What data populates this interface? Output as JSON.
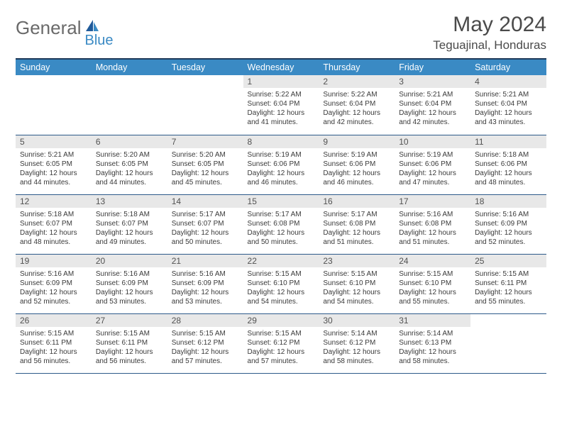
{
  "logo": {
    "general": "General",
    "blue": "Blue"
  },
  "title": "May 2024",
  "location": "Teguajinal, Honduras",
  "weekdays": [
    "Sunday",
    "Monday",
    "Tuesday",
    "Wednesday",
    "Thursday",
    "Friday",
    "Saturday"
  ],
  "colors": {
    "header_bg": "#3a8ac4",
    "header_text": "#ffffff",
    "border_top": "#1f3a5a",
    "row_border": "#2d5a8a",
    "daynum_bg": "#e8e8e8",
    "text": "#3a3a3a",
    "title_text": "#4a4a4a",
    "logo_general": "#6a6a6a",
    "logo_blue": "#3a8ac4"
  },
  "weeks": [
    [
      null,
      null,
      null,
      {
        "n": "1",
        "sr": "Sunrise: 5:22 AM",
        "ss": "Sunset: 6:04 PM",
        "d1": "Daylight: 12 hours",
        "d2": "and 41 minutes."
      },
      {
        "n": "2",
        "sr": "Sunrise: 5:22 AM",
        "ss": "Sunset: 6:04 PM",
        "d1": "Daylight: 12 hours",
        "d2": "and 42 minutes."
      },
      {
        "n": "3",
        "sr": "Sunrise: 5:21 AM",
        "ss": "Sunset: 6:04 PM",
        "d1": "Daylight: 12 hours",
        "d2": "and 42 minutes."
      },
      {
        "n": "4",
        "sr": "Sunrise: 5:21 AM",
        "ss": "Sunset: 6:04 PM",
        "d1": "Daylight: 12 hours",
        "d2": "and 43 minutes."
      }
    ],
    [
      {
        "n": "5",
        "sr": "Sunrise: 5:21 AM",
        "ss": "Sunset: 6:05 PM",
        "d1": "Daylight: 12 hours",
        "d2": "and 44 minutes."
      },
      {
        "n": "6",
        "sr": "Sunrise: 5:20 AM",
        "ss": "Sunset: 6:05 PM",
        "d1": "Daylight: 12 hours",
        "d2": "and 44 minutes."
      },
      {
        "n": "7",
        "sr": "Sunrise: 5:20 AM",
        "ss": "Sunset: 6:05 PM",
        "d1": "Daylight: 12 hours",
        "d2": "and 45 minutes."
      },
      {
        "n": "8",
        "sr": "Sunrise: 5:19 AM",
        "ss": "Sunset: 6:06 PM",
        "d1": "Daylight: 12 hours",
        "d2": "and 46 minutes."
      },
      {
        "n": "9",
        "sr": "Sunrise: 5:19 AM",
        "ss": "Sunset: 6:06 PM",
        "d1": "Daylight: 12 hours",
        "d2": "and 46 minutes."
      },
      {
        "n": "10",
        "sr": "Sunrise: 5:19 AM",
        "ss": "Sunset: 6:06 PM",
        "d1": "Daylight: 12 hours",
        "d2": "and 47 minutes."
      },
      {
        "n": "11",
        "sr": "Sunrise: 5:18 AM",
        "ss": "Sunset: 6:06 PM",
        "d1": "Daylight: 12 hours",
        "d2": "and 48 minutes."
      }
    ],
    [
      {
        "n": "12",
        "sr": "Sunrise: 5:18 AM",
        "ss": "Sunset: 6:07 PM",
        "d1": "Daylight: 12 hours",
        "d2": "and 48 minutes."
      },
      {
        "n": "13",
        "sr": "Sunrise: 5:18 AM",
        "ss": "Sunset: 6:07 PM",
        "d1": "Daylight: 12 hours",
        "d2": "and 49 minutes."
      },
      {
        "n": "14",
        "sr": "Sunrise: 5:17 AM",
        "ss": "Sunset: 6:07 PM",
        "d1": "Daylight: 12 hours",
        "d2": "and 50 minutes."
      },
      {
        "n": "15",
        "sr": "Sunrise: 5:17 AM",
        "ss": "Sunset: 6:08 PM",
        "d1": "Daylight: 12 hours",
        "d2": "and 50 minutes."
      },
      {
        "n": "16",
        "sr": "Sunrise: 5:17 AM",
        "ss": "Sunset: 6:08 PM",
        "d1": "Daylight: 12 hours",
        "d2": "and 51 minutes."
      },
      {
        "n": "17",
        "sr": "Sunrise: 5:16 AM",
        "ss": "Sunset: 6:08 PM",
        "d1": "Daylight: 12 hours",
        "d2": "and 51 minutes."
      },
      {
        "n": "18",
        "sr": "Sunrise: 5:16 AM",
        "ss": "Sunset: 6:09 PM",
        "d1": "Daylight: 12 hours",
        "d2": "and 52 minutes."
      }
    ],
    [
      {
        "n": "19",
        "sr": "Sunrise: 5:16 AM",
        "ss": "Sunset: 6:09 PM",
        "d1": "Daylight: 12 hours",
        "d2": "and 52 minutes."
      },
      {
        "n": "20",
        "sr": "Sunrise: 5:16 AM",
        "ss": "Sunset: 6:09 PM",
        "d1": "Daylight: 12 hours",
        "d2": "and 53 minutes."
      },
      {
        "n": "21",
        "sr": "Sunrise: 5:16 AM",
        "ss": "Sunset: 6:09 PM",
        "d1": "Daylight: 12 hours",
        "d2": "and 53 minutes."
      },
      {
        "n": "22",
        "sr": "Sunrise: 5:15 AM",
        "ss": "Sunset: 6:10 PM",
        "d1": "Daylight: 12 hours",
        "d2": "and 54 minutes."
      },
      {
        "n": "23",
        "sr": "Sunrise: 5:15 AM",
        "ss": "Sunset: 6:10 PM",
        "d1": "Daylight: 12 hours",
        "d2": "and 54 minutes."
      },
      {
        "n": "24",
        "sr": "Sunrise: 5:15 AM",
        "ss": "Sunset: 6:10 PM",
        "d1": "Daylight: 12 hours",
        "d2": "and 55 minutes."
      },
      {
        "n": "25",
        "sr": "Sunrise: 5:15 AM",
        "ss": "Sunset: 6:11 PM",
        "d1": "Daylight: 12 hours",
        "d2": "and 55 minutes."
      }
    ],
    [
      {
        "n": "26",
        "sr": "Sunrise: 5:15 AM",
        "ss": "Sunset: 6:11 PM",
        "d1": "Daylight: 12 hours",
        "d2": "and 56 minutes."
      },
      {
        "n": "27",
        "sr": "Sunrise: 5:15 AM",
        "ss": "Sunset: 6:11 PM",
        "d1": "Daylight: 12 hours",
        "d2": "and 56 minutes."
      },
      {
        "n": "28",
        "sr": "Sunrise: 5:15 AM",
        "ss": "Sunset: 6:12 PM",
        "d1": "Daylight: 12 hours",
        "d2": "and 57 minutes."
      },
      {
        "n": "29",
        "sr": "Sunrise: 5:15 AM",
        "ss": "Sunset: 6:12 PM",
        "d1": "Daylight: 12 hours",
        "d2": "and 57 minutes."
      },
      {
        "n": "30",
        "sr": "Sunrise: 5:14 AM",
        "ss": "Sunset: 6:12 PM",
        "d1": "Daylight: 12 hours",
        "d2": "and 58 minutes."
      },
      {
        "n": "31",
        "sr": "Sunrise: 5:14 AM",
        "ss": "Sunset: 6:13 PM",
        "d1": "Daylight: 12 hours",
        "d2": "and 58 minutes."
      },
      null
    ]
  ]
}
